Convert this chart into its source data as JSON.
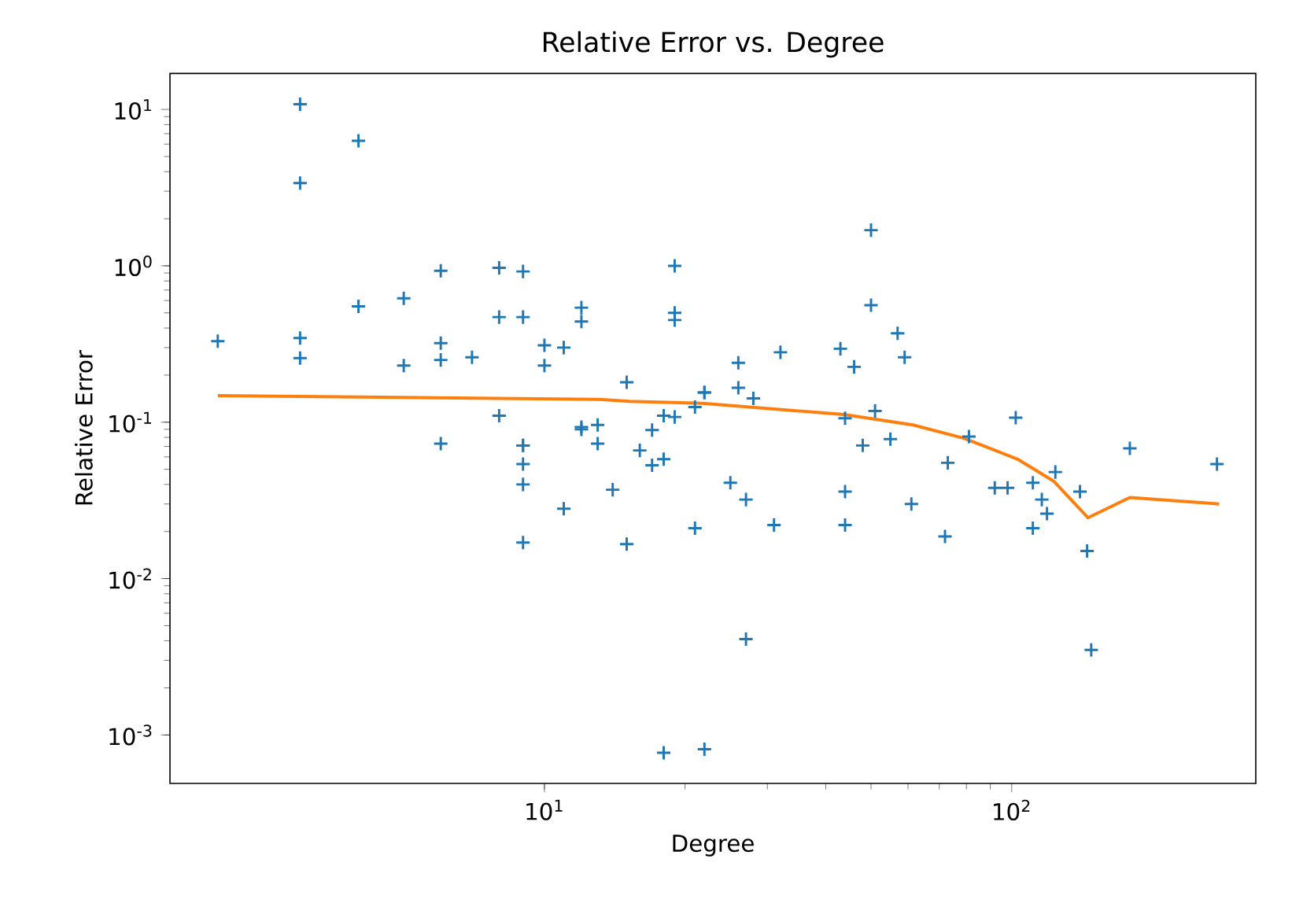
{
  "chart_data": {
    "type": "scatter",
    "title": "Relative Error vs. Degree",
    "xlabel": "Degree",
    "ylabel": "Relative Error",
    "log": "xy",
    "grid": false,
    "xlim": [
      1.58,
      333
    ],
    "ylim": [
      0.00049,
      17
    ],
    "xticks": [
      {
        "value": 10,
        "label": "10$^{1}$"
      },
      {
        "value": 100,
        "label": "10$^{2}$"
      }
    ],
    "yticks": [
      {
        "value": 0.001,
        "label": "10$^{-3}$"
      },
      {
        "value": 0.01,
        "label": "10$^{-2}$"
      },
      {
        "value": 0.1,
        "label": "10$^{-1}$"
      },
      {
        "value": 1,
        "label": "10$^{0}$"
      },
      {
        "value": 10,
        "label": "10$^{1}$"
      }
    ],
    "series": [
      {
        "marker": "cross",
        "color": "#1f77b4",
        "x": [
          2,
          3,
          3,
          3,
          3,
          4,
          4,
          5,
          5,
          6,
          6,
          6,
          6,
          7,
          8,
          8,
          8,
          9,
          9,
          9,
          9,
          9,
          9,
          9,
          10,
          10,
          11,
          11,
          12,
          12,
          12,
          12,
          13,
          13,
          14,
          15,
          15,
          16,
          17,
          17,
          18,
          18,
          18,
          19,
          19,
          19,
          19,
          21,
          21,
          22,
          22,
          22,
          25,
          26,
          26,
          27,
          27,
          28,
          31,
          32,
          43,
          44,
          44,
          44,
          46,
          48,
          50,
          50,
          51,
          55,
          57,
          59,
          61,
          72,
          73,
          81,
          92,
          98,
          102,
          111,
          111,
          116,
          119,
          124,
          140,
          145,
          148,
          179,
          275
        ],
        "values": [
          0.33,
          10.8,
          3.38,
          0.345,
          0.257,
          6.3,
          0.55,
          0.62,
          0.23,
          0.93,
          0.32,
          0.25,
          0.073,
          0.26,
          0.97,
          0.47,
          0.11,
          0.92,
          0.47,
          0.071,
          0.054,
          0.04,
          0.017,
          0.071,
          0.31,
          0.23,
          0.3,
          0.028,
          0.54,
          0.44,
          0.093,
          0.09,
          0.096,
          0.073,
          0.037,
          0.18,
          0.0166,
          0.066,
          0.089,
          0.053,
          0.11,
          0.058,
          0.00077,
          1.0,
          0.5,
          0.45,
          0.108,
          0.125,
          0.021,
          0.155,
          0.00081,
          0.155,
          0.041,
          0.24,
          0.166,
          0.032,
          0.0041,
          0.142,
          0.022,
          0.28,
          0.295,
          0.106,
          0.036,
          0.022,
          0.226,
          0.071,
          1.69,
          0.56,
          0.118,
          0.078,
          0.37,
          0.26,
          0.03,
          0.0186,
          0.055,
          0.081,
          0.038,
          0.038,
          0.107,
          0.041,
          0.021,
          0.032,
          0.026,
          0.048,
          0.036,
          0.015,
          0.0035,
          0.068,
          0.054
        ]
      },
      {
        "type": "line",
        "color": "#ff7f0e",
        "x": [
          2,
          13,
          15.2,
          21.8,
          43.8,
          61.5,
          79,
          103,
          123,
          145.6,
          179,
          278
        ],
        "values": [
          0.148,
          0.14,
          0.136,
          0.132,
          0.112,
          0.096,
          0.079,
          0.058,
          0.042,
          0.0245,
          0.033,
          0.03
        ]
      }
    ]
  }
}
